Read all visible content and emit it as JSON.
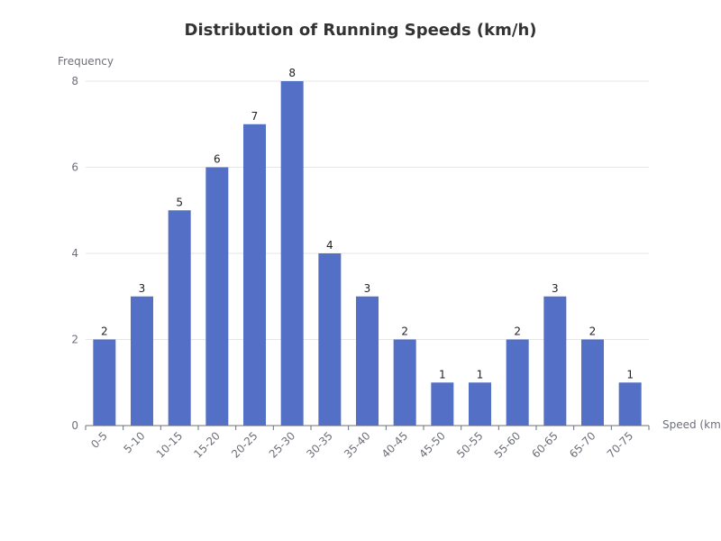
{
  "chart_data": {
    "type": "bar",
    "title": "Distribution of Running Speeds (km/h)",
    "xlabel": "Speed (km/h)",
    "ylabel": "Frequency",
    "categories": [
      "0-5",
      "5-10",
      "10-15",
      "15-20",
      "20-25",
      "25-30",
      "30-35",
      "35-40",
      "40-45",
      "45-50",
      "50-55",
      "55-60",
      "60-65",
      "65-70",
      "70-75"
    ],
    "values": [
      2,
      3,
      5,
      6,
      7,
      8,
      4,
      3,
      2,
      1,
      1,
      2,
      3,
      2,
      1
    ],
    "ylim": [
      0,
      8
    ],
    "yticks": [
      0,
      2,
      4,
      6,
      8
    ],
    "grid": true,
    "bar_color": "#5470c6",
    "data_labels": true,
    "legend": "none"
  }
}
